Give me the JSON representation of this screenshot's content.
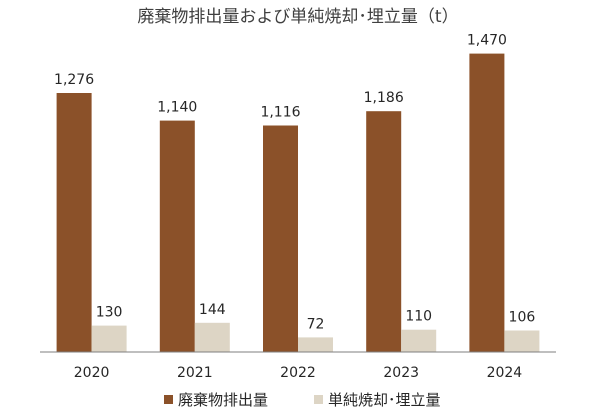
{
  "chart_data": {
    "type": "bar",
    "title": "廃棄物排出量および単純焼却･埋立量（t）",
    "xlabel": "",
    "ylabel": "",
    "categories": [
      "2020",
      "2021",
      "2022",
      "2023",
      "2024"
    ],
    "series": [
      {
        "name": "廃棄物排出量",
        "values": [
          1276,
          1140,
          1116,
          1186,
          1470
        ],
        "labels": [
          "1,276",
          "1,140",
          "1,116",
          "1,186",
          "1,470"
        ],
        "color": "#8b5129"
      },
      {
        "name": "単純焼却･埋立量",
        "values": [
          130,
          144,
          72,
          110,
          106
        ],
        "labels": [
          "130",
          "144",
          "72",
          "110",
          "106"
        ],
        "color": "#ddd5c5"
      }
    ],
    "ylim": [
      0,
      1700
    ],
    "grid": false,
    "legend": "bottom",
    "axis_color": "#7f7f7f"
  }
}
